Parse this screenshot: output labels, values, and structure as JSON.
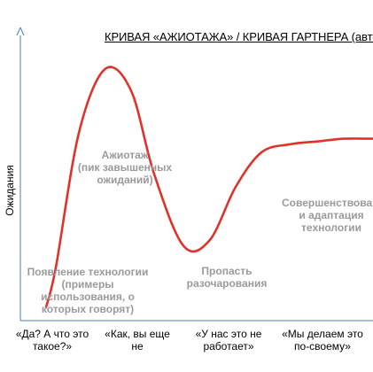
{
  "chart_data": {
    "type": "line",
    "title": "КРИВАЯ «АЖИОТАЖА» / КРИВАЯ ГАРТНЕРА (авто",
    "ylabel": "Ожидания",
    "xlabel": "",
    "colors": {
      "curve": "#e0322a",
      "axis": "#4a7ec0",
      "phase_text": "#9a9a9a"
    },
    "axis_arrows": {
      "y_axis": true
    },
    "grid": false,
    "y_ticks_shown": false,
    "phases": [
      "Появление технологии (примеры использования, о которых говорят)",
      "Ажиотаж (пик завышенных ожиданий)",
      "Пропасть разочарования",
      "Совершенствование и адаптация технологии"
    ],
    "x_categories": [
      "«Да? А что это такое?»",
      "«Как, вы еще не",
      "«У нас это не работает»",
      "«Мы делаем это по-своему»"
    ],
    "series": [
      {
        "x": [
          0.0,
          0.03,
          0.1,
          0.18,
          0.26,
          0.33,
          0.42,
          0.5,
          0.58,
          0.66,
          0.75,
          0.83,
          0.91,
          1.0
        ],
        "values": [
          0.05,
          0.2,
          0.7,
          0.94,
          0.86,
          0.55,
          0.28,
          0.3,
          0.5,
          0.63,
          0.66,
          0.67,
          0.68,
          0.68
        ]
      }
    ]
  },
  "labels": {
    "phase_1": [
      "Появление технологии",
      "(примеры",
      "использования, о",
      "которых говорят)"
    ],
    "phase_2": [
      "Ажиотаж",
      "(пик завышенных",
      "ожиданий)"
    ],
    "phase_3": [
      "Пропасть",
      "разочарования"
    ],
    "phase_4": [
      "Совершенствование",
      "и адаптация",
      "технологии"
    ],
    "cat_1": [
      "«Да? А что это",
      "такое?»"
    ],
    "cat_2": [
      "«Как, вы еще",
      "не"
    ],
    "cat_3": [
      "«У нас это не",
      "работает»"
    ],
    "cat_4": [
      "«Мы делаем это",
      "по-своему»"
    ]
  }
}
